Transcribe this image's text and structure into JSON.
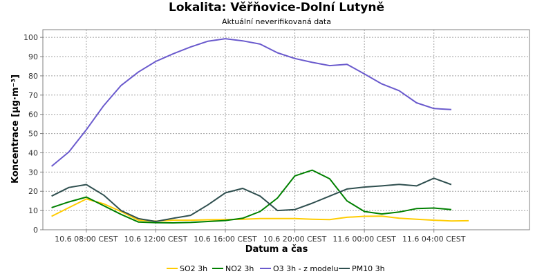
{
  "chart_data": {
    "type": "line",
    "title": "Lokalita: Věřňovice-Dolní Lutyně",
    "subtitle": "Aktuální neverifikovaná data",
    "xlabel": "Datum a čas",
    "ylabel": "Koncentrace [µg·m⁻³]",
    "ylim": [
      0,
      104
    ],
    "yticks": [
      0,
      10,
      20,
      30,
      40,
      50,
      60,
      70,
      80,
      90,
      100
    ],
    "x_hours": [
      0,
      1,
      2,
      3,
      4,
      5,
      6,
      7,
      8,
      9,
      10,
      11,
      12,
      13,
      14,
      15,
      16,
      17,
      18,
      19,
      20,
      21,
      22,
      23,
      24,
      25,
      26,
      27
    ],
    "xlim": [
      -0.5,
      27.5
    ],
    "x_ticks": [
      {
        "hour": 2,
        "label": "10.6 08:00 CEST"
      },
      {
        "hour": 6,
        "label": "10.6 12:00 CEST"
      },
      {
        "hour": 10,
        "label": "10.6 16:00 CEST"
      },
      {
        "hour": 14,
        "label": "10.6 20:00 CEST"
      },
      {
        "hour": 18,
        "label": "11.6 00:00 CEST"
      },
      {
        "hour": 22,
        "label": "11.6 04:00 CEST"
      }
    ],
    "grid": true,
    "legend_position": "bottom",
    "series": [
      {
        "name": "SO2 3h",
        "color": "#ffcc00",
        "values": [
          7,
          11.5,
          16,
          13.5,
          9.5,
          5,
          4.5,
          5,
          5,
          5.2,
          5.3,
          5.5,
          5.8,
          5.8,
          5.8,
          5.5,
          5.3,
          6.5,
          7,
          7.1,
          6,
          5.5,
          5,
          4.6,
          4.7
        ]
      },
      {
        "name": "NO2 3h",
        "color": "#008000",
        "values": [
          11.5,
          14.5,
          17,
          12.5,
          8,
          4,
          3.7,
          3.6,
          3.8,
          4.3,
          4.8,
          6,
          9.5,
          16.5,
          28,
          31,
          26.5,
          15,
          9.5,
          8.2,
          9.2,
          11,
          11.3,
          10.5
        ]
      },
      {
        "name": "O3 3h - z modelu",
        "color": "#6a5acd",
        "values": [
          33,
          40.5,
          52,
          64.5,
          75,
          82,
          87.5,
          91.5,
          95,
          98,
          99.3,
          98.2,
          96.5,
          92,
          89,
          87,
          85.3,
          86,
          81,
          75.8,
          72.3,
          66,
          63,
          62.5
        ]
      },
      {
        "name": "PM10 3h",
        "color": "#2f4f4f",
        "values": [
          17.5,
          22,
          23.5,
          18,
          10,
          5.8,
          4.3,
          6,
          7.5,
          13,
          19.2,
          21.5,
          17.5,
          10,
          10.5,
          13.8,
          17.5,
          21.2,
          22.2,
          22.8,
          23.6,
          22.8,
          26.8,
          23.5
        ]
      }
    ]
  }
}
